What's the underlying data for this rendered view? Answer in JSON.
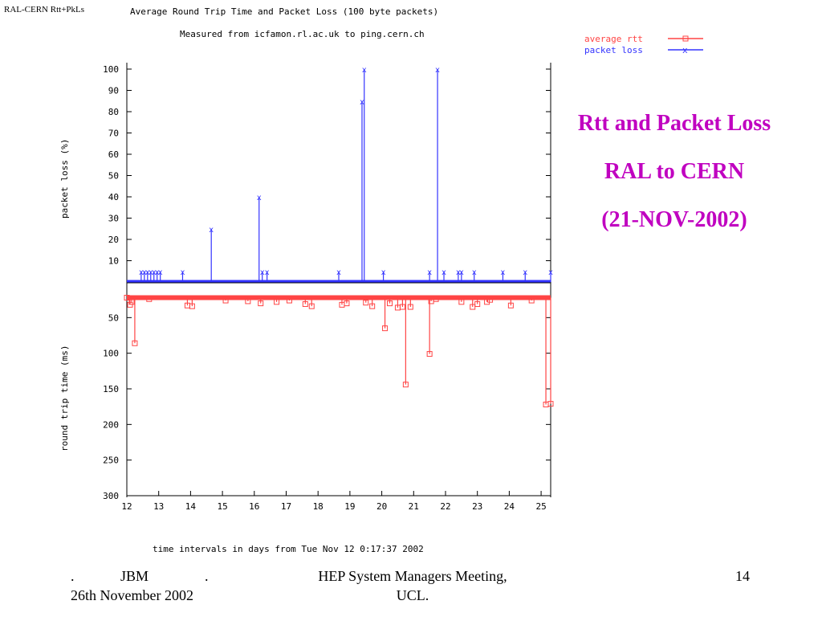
{
  "slide": {
    "corner_label": "RAL-CERN Rtt+PkLs",
    "title_lines": [
      "Rtt and Packet Loss",
      "RAL to CERN",
      "(21-NOV-2002)"
    ],
    "title_color": "#c000c0",
    "footer": {
      "dot_left": ".",
      "author": "JBM",
      "dot_right": ".",
      "date": "26th November 2002",
      "event_line1": "HEP System Managers Meeting,",
      "event_line2": "UCL.",
      "page": "14"
    }
  },
  "chart_data": {
    "type": "line",
    "title": "Average Round Trip Time and Packet Loss (100 byte packets)",
    "subtitle": "Measured from icfamon.rl.ac.uk to ping.cern.ch",
    "xlabel": "time intervals in days from Tue Nov 12  0:17:37 2002",
    "xlim": [
      12,
      25.3
    ],
    "x_ticks": [
      12,
      13,
      14,
      15,
      16,
      17,
      18,
      19,
      20,
      21,
      22,
      23,
      24,
      25
    ],
    "legend_position": "top-right",
    "panels": [
      {
        "name": "packet_loss",
        "ylabel": "packet loss (%)",
        "ylim": [
          0,
          100
        ],
        "y_ticks": [
          10,
          20,
          30,
          40,
          50,
          60,
          70,
          80,
          90,
          100
        ],
        "series": [
          {
            "name": "packet loss",
            "color": "#3333ff",
            "baseline": 0,
            "x": [
              12.45,
              12.55,
              12.65,
              12.75,
              12.85,
              12.95,
              13.05,
              13.75,
              14.65,
              16.15,
              16.25,
              16.4,
              18.65,
              19.38,
              19.45,
              20.05,
              21.5,
              21.75,
              21.95,
              22.4,
              22.5,
              22.9,
              23.8,
              24.5,
              25.3
            ],
            "values": [
              5,
              5,
              5,
              5,
              5,
              5,
              5,
              5,
              25,
              40,
              5,
              5,
              5,
              85,
              100,
              5,
              5,
              100,
              5,
              5,
              5,
              5,
              5,
              5,
              5
            ]
          }
        ]
      },
      {
        "name": "round_trip_time",
        "ylabel": "round trip time (ms)",
        "ylim": [
          300,
          0
        ],
        "y_ticks": [
          50,
          100,
          150,
          200,
          250,
          300
        ],
        "series": [
          {
            "name": "average rtt",
            "color": "#ff4444",
            "baseline": 22,
            "x": [
              12.0,
              12.1,
              12.15,
              12.25,
              12.7,
              13.9,
              14.05,
              15.1,
              15.8,
              16.2,
              16.7,
              17.1,
              17.6,
              17.8,
              18.75,
              18.9,
              19.5,
              19.7,
              20.1,
              20.25,
              20.5,
              20.65,
              20.75,
              20.9,
              21.5,
              21.55,
              21.7,
              22.5,
              22.85,
              23.0,
              23.3,
              23.4,
              24.05,
              24.7,
              25.15,
              25.3
            ],
            "values": [
              22,
              32,
              28,
              86,
              24,
              33,
              34,
              26,
              27,
              30,
              28,
              26,
              31,
              34,
              32,
              30,
              29,
              34,
              65,
              30,
              36,
              35,
              144,
              35,
              101,
              27,
              24,
              28,
              35,
              31,
              28,
              25,
              33,
              26,
              172,
              171
            ]
          }
        ]
      }
    ]
  }
}
